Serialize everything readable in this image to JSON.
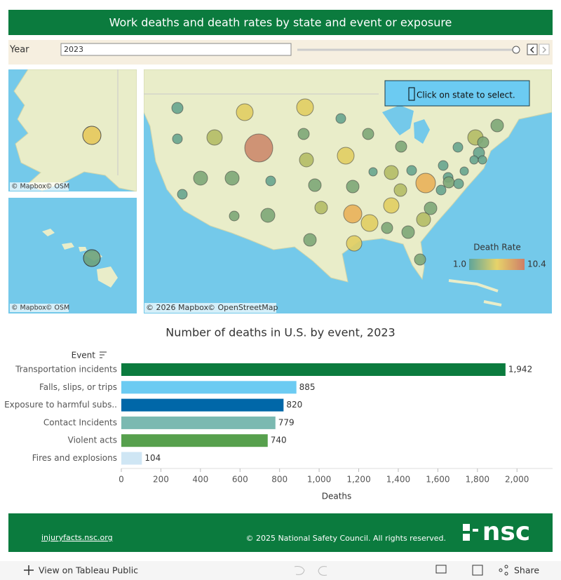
{
  "header": {
    "title": "Work deaths and death rates by state and event or exposure"
  },
  "filter": {
    "label": "Year",
    "value": "2023"
  },
  "map": {
    "tooltip": "Click on state to select.",
    "inset_credits": [
      "© Mapbox",
      "© OSM"
    ],
    "main_credits": [
      "© 2026 Mapbox",
      "© OpenStreetMap"
    ],
    "legend": {
      "title": "Death Rate",
      "min": {
        "value": 1,
        "label": "1.0"
      },
      "max": 10.4
    }
  },
  "chart_data": {
    "type": "bar",
    "orientation": "horizontal",
    "title": "Number of deaths in U.S. by event, 2023",
    "y_label": "Event",
    "x_label": "Deaths",
    "categories": [
      "Transportation incidents",
      "Falls, slips, or trips",
      "Exposure to harmful subs..",
      "Contact Incidents",
      "Violent acts",
      "Fires and explosions"
    ],
    "values": [
      1942,
      885,
      820,
      779,
      740,
      104
    ],
    "value_labels": [
      "1,942",
      "885",
      "820",
      "779",
      "740",
      "104"
    ],
    "colors": [
      "#0b7b3e",
      "#6ccbf2",
      "#0067a8",
      "#7bb9b1",
      "#57a04d",
      "#cfe6f4"
    ],
    "xlim": [
      0,
      2180
    ],
    "xticks": [
      0,
      200,
      400,
      600,
      800,
      {
        "value": 1000,
        "label": "1,000"
      },
      {
        "value": 1200,
        "label": "1,200"
      },
      {
        "value": 1400,
        "label": "1,400"
      },
      {
        "value": 1600,
        "label": "1,600"
      },
      {
        "value": 1800,
        "label": "1,800"
      },
      {
        "value": 2000,
        "label": "2,000"
      }
    ]
  },
  "footer": {
    "link": "injuryfacts.nsc.org",
    "copyright": "© 2025 National Safety Council. All rights reserved.",
    "logo": "nsc"
  },
  "toolbar": {
    "view": "View on Tableau Public",
    "share": "Share"
  }
}
